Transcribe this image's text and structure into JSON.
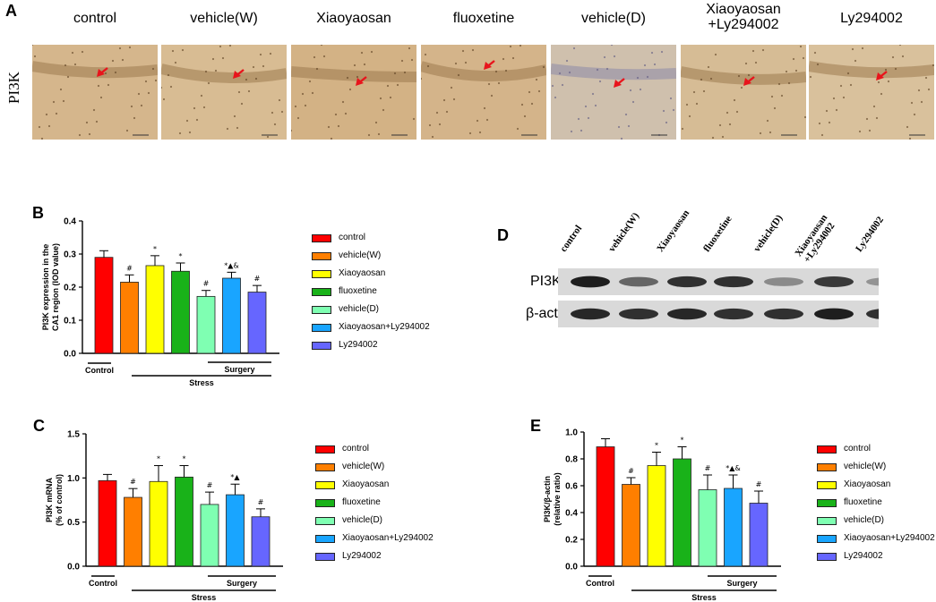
{
  "panels": {
    "A": "A",
    "B": "B",
    "C": "C",
    "D": "D",
    "E": "E"
  },
  "micrographs": {
    "side_label": "PI3K",
    "groups": [
      "control",
      "vehicle(W)",
      "Xiaoyaosan",
      "fluoxetine",
      "vehicle(D)",
      "Xiaoyaosan\n+Ly294002",
      "Ly294002"
    ],
    "label_line1": [
      "control",
      "vehicle(W)",
      "Xiaoyaosan",
      "fluoxetine",
      "vehicle(D)",
      "Xiaoyaosan",
      "Ly294002"
    ],
    "label_line2": [
      "",
      "",
      "",
      "",
      "",
      "+Ly294002",
      ""
    ],
    "tints": [
      "#d5b68c",
      "#d8bc93",
      "#d3b285",
      "#d4b48a",
      "#cfc0ad",
      "#d6bc95",
      "#d9c19c"
    ],
    "arrow_color": "#e8141c"
  },
  "legend": {
    "entries": [
      "control",
      "vehicle(W)",
      "Xiaoyaosan",
      "fluoxetine",
      "vehicle(D)",
      "Xiaoyaosan+Ly294002",
      "Ly294002"
    ],
    "colors": [
      "#ff0000",
      "#ff7f00",
      "#ffff00",
      "#19b219",
      "#7fffb2",
      "#19a5ff",
      "#6666ff"
    ]
  },
  "groupings": {
    "control": "Control",
    "stress": "Stress",
    "surgery": "Surgery"
  },
  "blot": {
    "lanes": [
      "control",
      "vehicle(W)",
      "Xiaoyaosan",
      "fluoxetine",
      "vehicle(D)",
      "Xiaoyaosan\n+Ly294002",
      "Ly294002"
    ],
    "lane_line1": [
      "control",
      "vehicle(W)",
      "Xiaoyaosan",
      "fluoxetine",
      "vehicle(D)",
      "Xiaoyaosan",
      "Ly294002"
    ],
    "lane_line2": [
      "",
      "",
      "",
      "",
      "",
      "+Ly294002",
      ""
    ],
    "rows": [
      {
        "label": "PI3K",
        "intensity": [
          0.95,
          0.55,
          0.85,
          0.85,
          0.35,
          0.8,
          0.3
        ]
      },
      {
        "label": "β-actin",
        "intensity": [
          0.9,
          0.85,
          0.9,
          0.85,
          0.85,
          0.95,
          0.85
        ]
      }
    ]
  },
  "chart_data": [
    {
      "id": "B",
      "type": "bar",
      "categories": [
        "control",
        "vehicle(W)",
        "Xiaoyaosan",
        "fluoxetine",
        "vehicle(D)",
        "Xiaoyaosan+Ly294002",
        "Ly294002"
      ],
      "values": [
        0.29,
        0.215,
        0.265,
        0.248,
        0.172,
        0.227,
        0.185
      ],
      "errors": [
        0.02,
        0.022,
        0.03,
        0.025,
        0.018,
        0.018,
        0.02
      ],
      "annotations": [
        "",
        "#",
        "*",
        "*",
        "#",
        "*▲&",
        "#"
      ],
      "ylabel": "PI3K expression in the\nCA1 region (IOD value)",
      "ylabel_line1": "PI3K expression in the",
      "ylabel_line2": "CA1 region (IOD value)",
      "ylim": [
        0,
        0.4
      ],
      "ticks": [
        "0.0",
        "0.1",
        "0.2",
        "0.3",
        "0.4"
      ],
      "tick_values": [
        0,
        0.1,
        0.2,
        0.3,
        0.4
      ]
    },
    {
      "id": "C",
      "type": "bar",
      "categories": [
        "control",
        "vehicle(W)",
        "Xiaoyaosan",
        "fluoxetine",
        "vehicle(D)",
        "Xiaoyaosan+Ly294002",
        "Ly294002"
      ],
      "values": [
        0.97,
        0.78,
        0.96,
        1.01,
        0.7,
        0.81,
        0.56
      ],
      "errors": [
        0.07,
        0.1,
        0.18,
        0.13,
        0.14,
        0.12,
        0.09
      ],
      "annotations": [
        "",
        "#",
        "*",
        "*",
        "#",
        "*▲",
        "#"
      ],
      "ylabel": "PI3K mRNA\n(% of control)",
      "ylabel_line1": "PI3K mRNA",
      "ylabel_line2": "(% of control)",
      "ylim": [
        0,
        1.5
      ],
      "ticks": [
        "0.0",
        "0.5",
        "1.0",
        "1.5"
      ],
      "tick_values": [
        0,
        0.5,
        1.0,
        1.5
      ]
    },
    {
      "id": "E",
      "type": "bar",
      "categories": [
        "control",
        "vehicle(W)",
        "Xiaoyaosan",
        "fluoxetine",
        "vehicle(D)",
        "Xiaoyaosan+Ly294002",
        "Ly294002"
      ],
      "values": [
        0.89,
        0.61,
        0.75,
        0.8,
        0.57,
        0.58,
        0.47
      ],
      "errors": [
        0.06,
        0.05,
        0.1,
        0.09,
        0.11,
        0.1,
        0.09
      ],
      "annotations": [
        "",
        "#",
        "*",
        "*",
        "#",
        "*▲&",
        "#"
      ],
      "ylabel": "PI3K/β-actin\n(relative ratio)",
      "ylabel_line1": "PI3K/β-actin",
      "ylabel_line2": "(relative ratio)",
      "ylim": [
        0,
        1.0
      ],
      "ticks": [
        "0.0",
        "0.2",
        "0.4",
        "0.6",
        "0.8",
        "1.0"
      ],
      "tick_values": [
        0,
        0.2,
        0.4,
        0.6,
        0.8,
        1.0
      ]
    }
  ]
}
